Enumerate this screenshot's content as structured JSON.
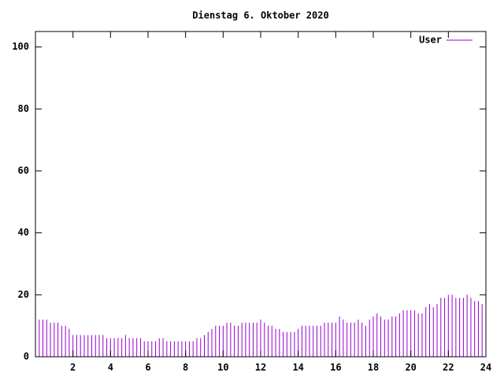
{
  "chart_data": {
    "type": "impulses",
    "title": "Dienstag 6. Oktober 2020",
    "x": [
      0,
      0.2,
      0.4,
      0.6,
      0.8,
      1,
      1.2,
      1.4,
      1.6,
      1.8,
      2,
      2.2,
      2.4,
      2.6,
      2.8,
      3,
      3.2,
      3.4,
      3.6,
      3.8,
      4,
      4.2,
      4.4,
      4.6,
      4.8,
      5,
      5.2,
      5.4,
      5.6,
      5.8,
      6,
      6.2,
      6.4,
      6.6,
      6.8,
      7,
      7.2,
      7.4,
      7.6,
      7.8,
      8,
      8.2,
      8.4,
      8.6,
      8.8,
      9,
      9.2,
      9.4,
      9.6,
      9.8,
      10,
      10.2,
      10.4,
      10.6,
      10.8,
      11,
      11.2,
      11.4,
      11.6,
      11.8,
      12,
      12.2,
      12.4,
      12.6,
      12.8,
      13,
      13.2,
      13.4,
      13.6,
      13.8,
      14,
      14.2,
      14.4,
      14.6,
      14.8,
      15,
      15.2,
      15.4,
      15.6,
      15.8,
      16,
      16.2,
      16.4,
      16.6,
      16.8,
      17,
      17.2,
      17.4,
      17.6,
      17.8,
      18,
      18.2,
      18.4,
      18.6,
      18.8,
      19,
      19.2,
      19.4,
      19.6,
      19.8,
      20,
      20.2,
      20.4,
      20.6,
      20.8,
      21,
      21.2,
      21.4,
      21.6,
      21.8,
      22,
      22.2,
      22.4,
      22.6,
      22.8,
      23,
      23.2,
      23.4,
      23.6,
      23.8,
      24
    ],
    "series": [
      {
        "name": "User",
        "color": "#9400d3",
        "values": [
          10,
          12,
          12,
          12,
          11,
          11,
          11,
          10,
          10,
          9,
          7,
          7,
          7,
          7,
          7,
          7,
          7,
          7,
          7,
          6,
          6,
          6,
          6,
          6,
          7,
          6,
          6,
          6,
          6,
          5,
          5,
          5,
          5,
          6,
          6,
          5,
          5,
          5,
          5,
          5,
          5,
          5,
          5,
          6,
          6,
          7,
          8,
          9,
          10,
          10,
          10,
          11,
          11,
          10,
          10,
          11,
          11,
          11,
          11,
          11,
          12,
          11,
          10,
          10,
          9,
          9,
          8,
          8,
          8,
          8,
          9,
          10,
          10,
          10,
          10,
          10,
          10,
          11,
          11,
          11,
          11,
          13,
          12,
          11,
          11,
          11,
          12,
          11,
          10,
          12,
          13,
          14,
          13,
          12,
          12,
          13,
          13,
          14,
          15,
          15,
          15,
          15,
          14,
          14,
          16,
          17,
          16,
          17,
          19,
          19,
          20,
          20,
          19,
          19,
          19,
          20,
          19,
          18,
          18,
          17,
          16
        ]
      }
    ],
    "xlim": [
      0,
      24
    ],
    "ylim": [
      0,
      105
    ],
    "xticks": [
      2,
      4,
      6,
      8,
      10,
      12,
      14,
      16,
      18,
      20,
      22,
      24
    ],
    "yticks": [
      0,
      20,
      40,
      60,
      80,
      100
    ],
    "legend": "top-right",
    "grid": false
  }
}
